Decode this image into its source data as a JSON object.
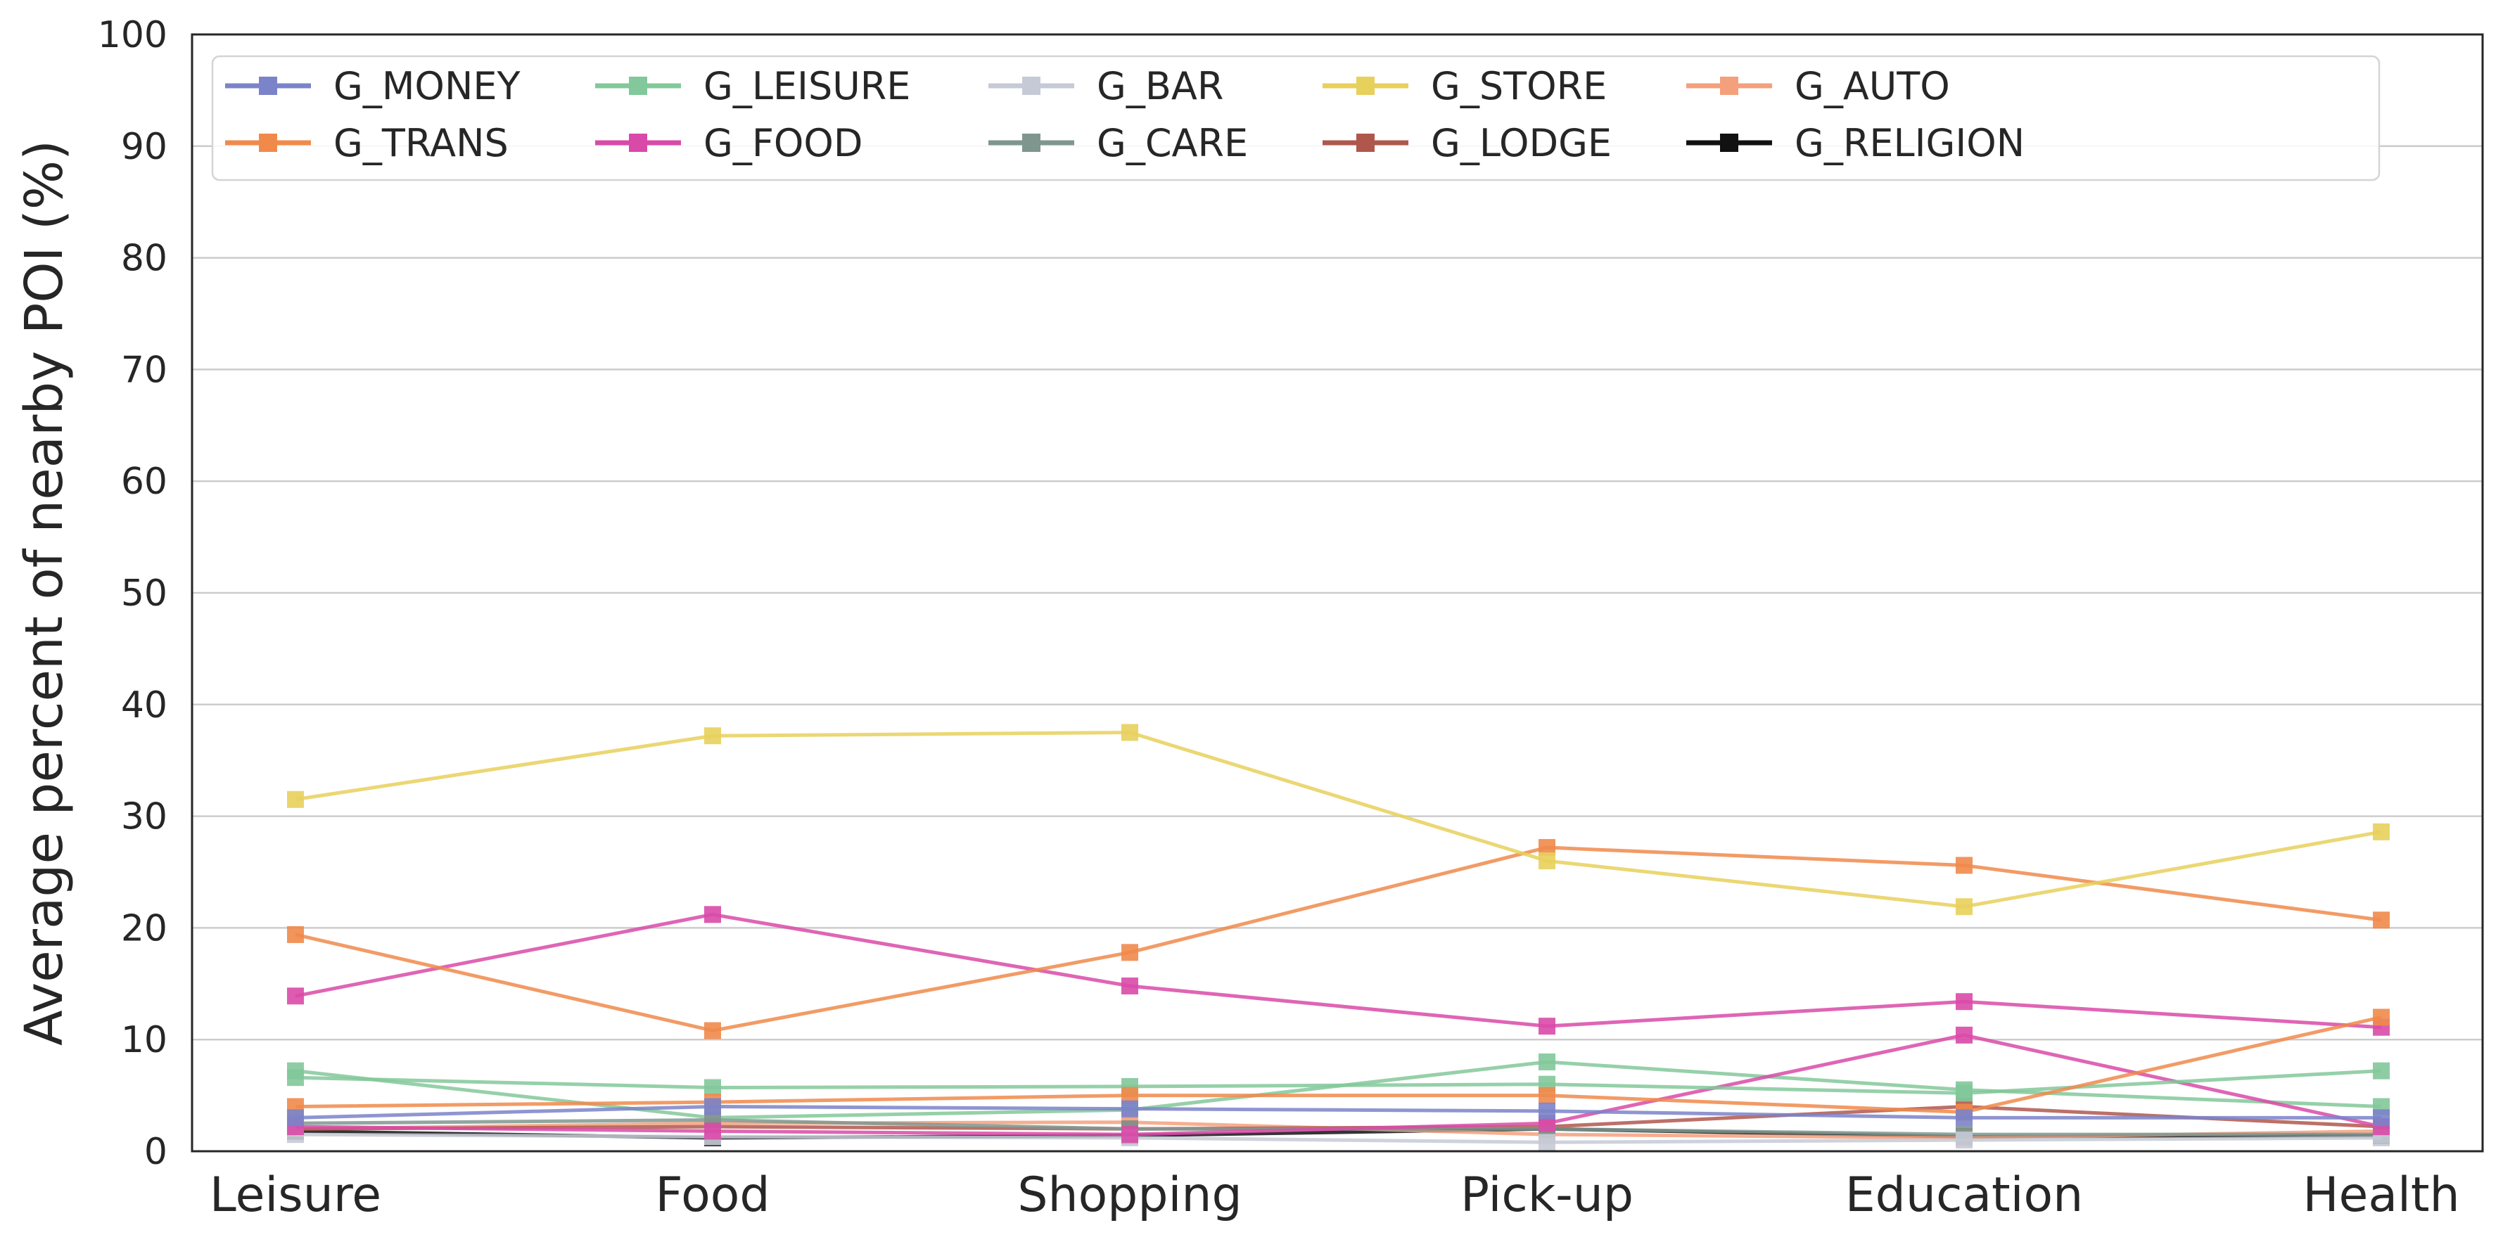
{
  "chart_data": {
    "type": "line",
    "title": "",
    "xlabel": "",
    "ylabel": "Average percent of nearby POI (%)",
    "categories": [
      "Leisure",
      "Food",
      "Shopping",
      "Pick-up",
      "Education",
      "Health"
    ],
    "ylim": [
      0,
      100
    ],
    "yticks": [
      0,
      10,
      20,
      30,
      40,
      50,
      60,
      70,
      80,
      90,
      100
    ],
    "grid": "horizontal",
    "legend_position": "top",
    "series": [
      {
        "name": "G_MONEY",
        "color": "#7b83c9",
        "values": [
          3.0,
          4.0,
          3.8,
          3.6,
          3.0,
          3.0
        ]
      },
      {
        "name": "G_TRANS",
        "color": "#f08a4b",
        "values": [
          4.0,
          4.4,
          5.0,
          5.0,
          3.5,
          12.0
        ]
      },
      {
        "name": "G_LEISURE",
        "color": "#82c89a",
        "values": [
          6.6,
          5.7,
          5.8,
          6.0,
          5.2,
          7.2
        ]
      },
      {
        "name": "G_FOOD",
        "color": "#d94aa8",
        "values": [
          2.2,
          1.8,
          1.5,
          2.5,
          10.4,
          2.2
        ]
      },
      {
        "name": "G_BAR",
        "color": "#c5cad6",
        "values": [
          1.5,
          1.3,
          1.2,
          0.8,
          1.0,
          1.2
        ]
      },
      {
        "name": "G_CARE",
        "color": "#7f968f",
        "values": [
          2.5,
          2.8,
          2.0,
          2.0,
          1.5,
          1.5
        ]
      },
      {
        "name": "G_STORE",
        "color": "#e8d05c",
        "values": [
          31.5,
          37.2,
          37.5,
          26.0,
          21.9,
          28.6
        ]
      },
      {
        "name": "G_LODGE",
        "color": "#b0574d",
        "values": [
          2.0,
          2.2,
          2.0,
          2.2,
          4.0,
          2.2
        ]
      },
      {
        "name": "G_AUTO",
        "color": "#f4a07c",
        "values": [
          2.0,
          2.5,
          2.6,
          1.5,
          1.2,
          1.8
        ]
      },
      {
        "name": "G_RELIGION",
        "color": "#111111",
        "values": [
          1.8,
          1.2,
          1.4,
          2.0,
          1.3,
          1.4
        ]
      },
      {
        "name": "",
        "color": "#f08a4b",
        "values": [
          19.4,
          10.8,
          17.8,
          27.2,
          25.6,
          20.7
        ]
      },
      {
        "name": "",
        "color": "#d94aa8",
        "values": [
          13.9,
          21.2,
          14.8,
          11.2,
          13.4,
          11.1
        ]
      },
      {
        "name": "",
        "color": "#82c89a",
        "values": [
          7.2,
          3.0,
          3.7,
          8.0,
          5.5,
          4.0
        ]
      }
    ]
  }
}
